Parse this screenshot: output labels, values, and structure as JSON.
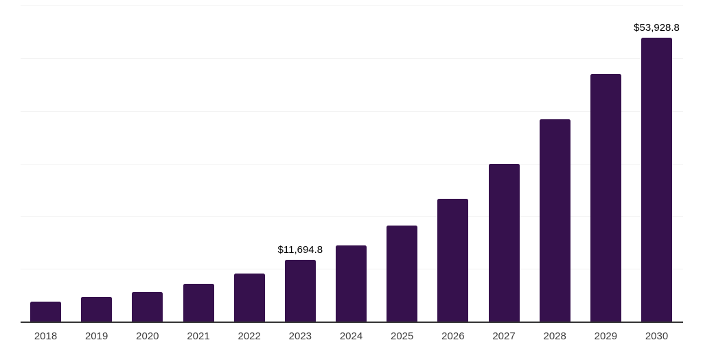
{
  "chart_data": {
    "type": "bar",
    "title": "",
    "xlabel": "",
    "ylabel": "",
    "categories": [
      "2018",
      "2019",
      "2020",
      "2021",
      "2022",
      "2023",
      "2024",
      "2025",
      "2026",
      "2027",
      "2028",
      "2029",
      "2030"
    ],
    "values": [
      3800,
      4700,
      5600,
      7100,
      9100,
      11694.8,
      14400,
      18200,
      23300,
      30000,
      38400,
      47000,
      53928.8
    ],
    "values_note": "only 2023 and 2030 are labeled on the chart; other values estimated from gridlines",
    "data_labels": [
      {
        "category": "2023",
        "text": "$11,694.8"
      },
      {
        "category": "2030",
        "text": "$53,928.8"
      }
    ],
    "ylim": [
      0,
      60000
    ],
    "gridline_interval": 10000,
    "grid": "horizontal",
    "y_tick_labels_visible": false,
    "legend": "none",
    "colors": {
      "bar": "#36114D",
      "axis_line": "#333333",
      "gridline": "#f2f2f2",
      "x_tick_label": "#3d3d3d",
      "data_label": "#000000",
      "background": "#ffffff"
    }
  }
}
